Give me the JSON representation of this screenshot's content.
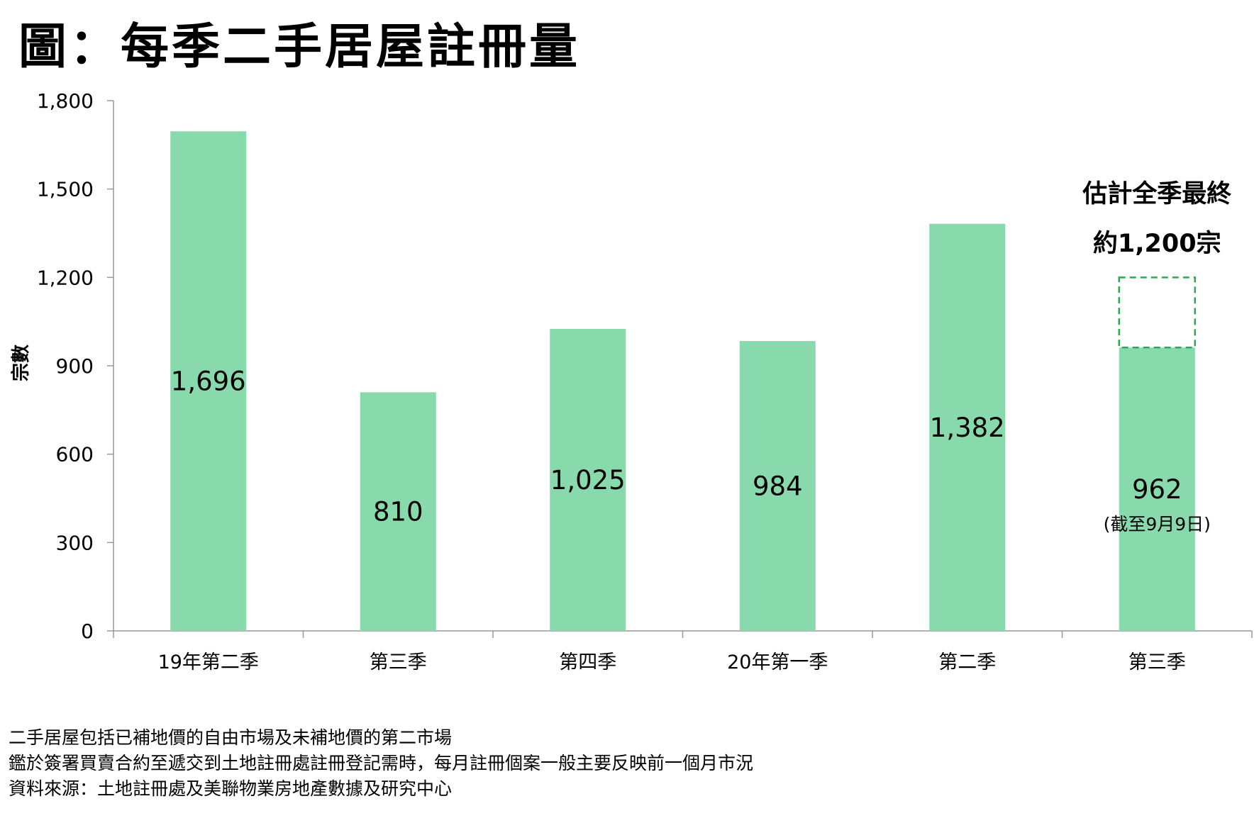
{
  "title": "圖：每季二手居屋註冊量",
  "chart_data": {
    "type": "bar",
    "title": "圖：每季二手居屋註冊量",
    "ylabel": "宗數",
    "xlabel": "",
    "ylim": [
      0,
      1800
    ],
    "yticks": [
      0,
      300,
      600,
      900,
      1200,
      1500,
      1800
    ],
    "ytick_labels": [
      "0",
      "300",
      "600",
      "900",
      "1,200",
      "1,500",
      "1,800"
    ],
    "categories": [
      "19年第二季",
      "第三季",
      "第四季",
      "20年第一季",
      "第二季",
      "第三季"
    ],
    "values": [
      1696,
      810,
      1025,
      984,
      1382,
      962
    ],
    "value_labels": [
      "1,696",
      "810",
      "1,025",
      "984",
      "1,382",
      "962"
    ],
    "bar_color": "#88d9ab",
    "grid": false,
    "estimate": {
      "category_index": 5,
      "value": 1200,
      "line1": "估計全季最終",
      "line2": "約1,200宗",
      "border_color": "#2eaa55"
    },
    "last_bar_note": "(截至9月9日)"
  },
  "footnotes": [
    "二手居屋包括已補地價的自由市場及未補地價的第二市場",
    "鑑於簽署買賣合約至遞交到土地註冊處註冊登記需時，每月註冊個案一般主要反映前一個月市況",
    "資料來源：土地註冊處及美聯物業房地產數據及研究中心"
  ]
}
